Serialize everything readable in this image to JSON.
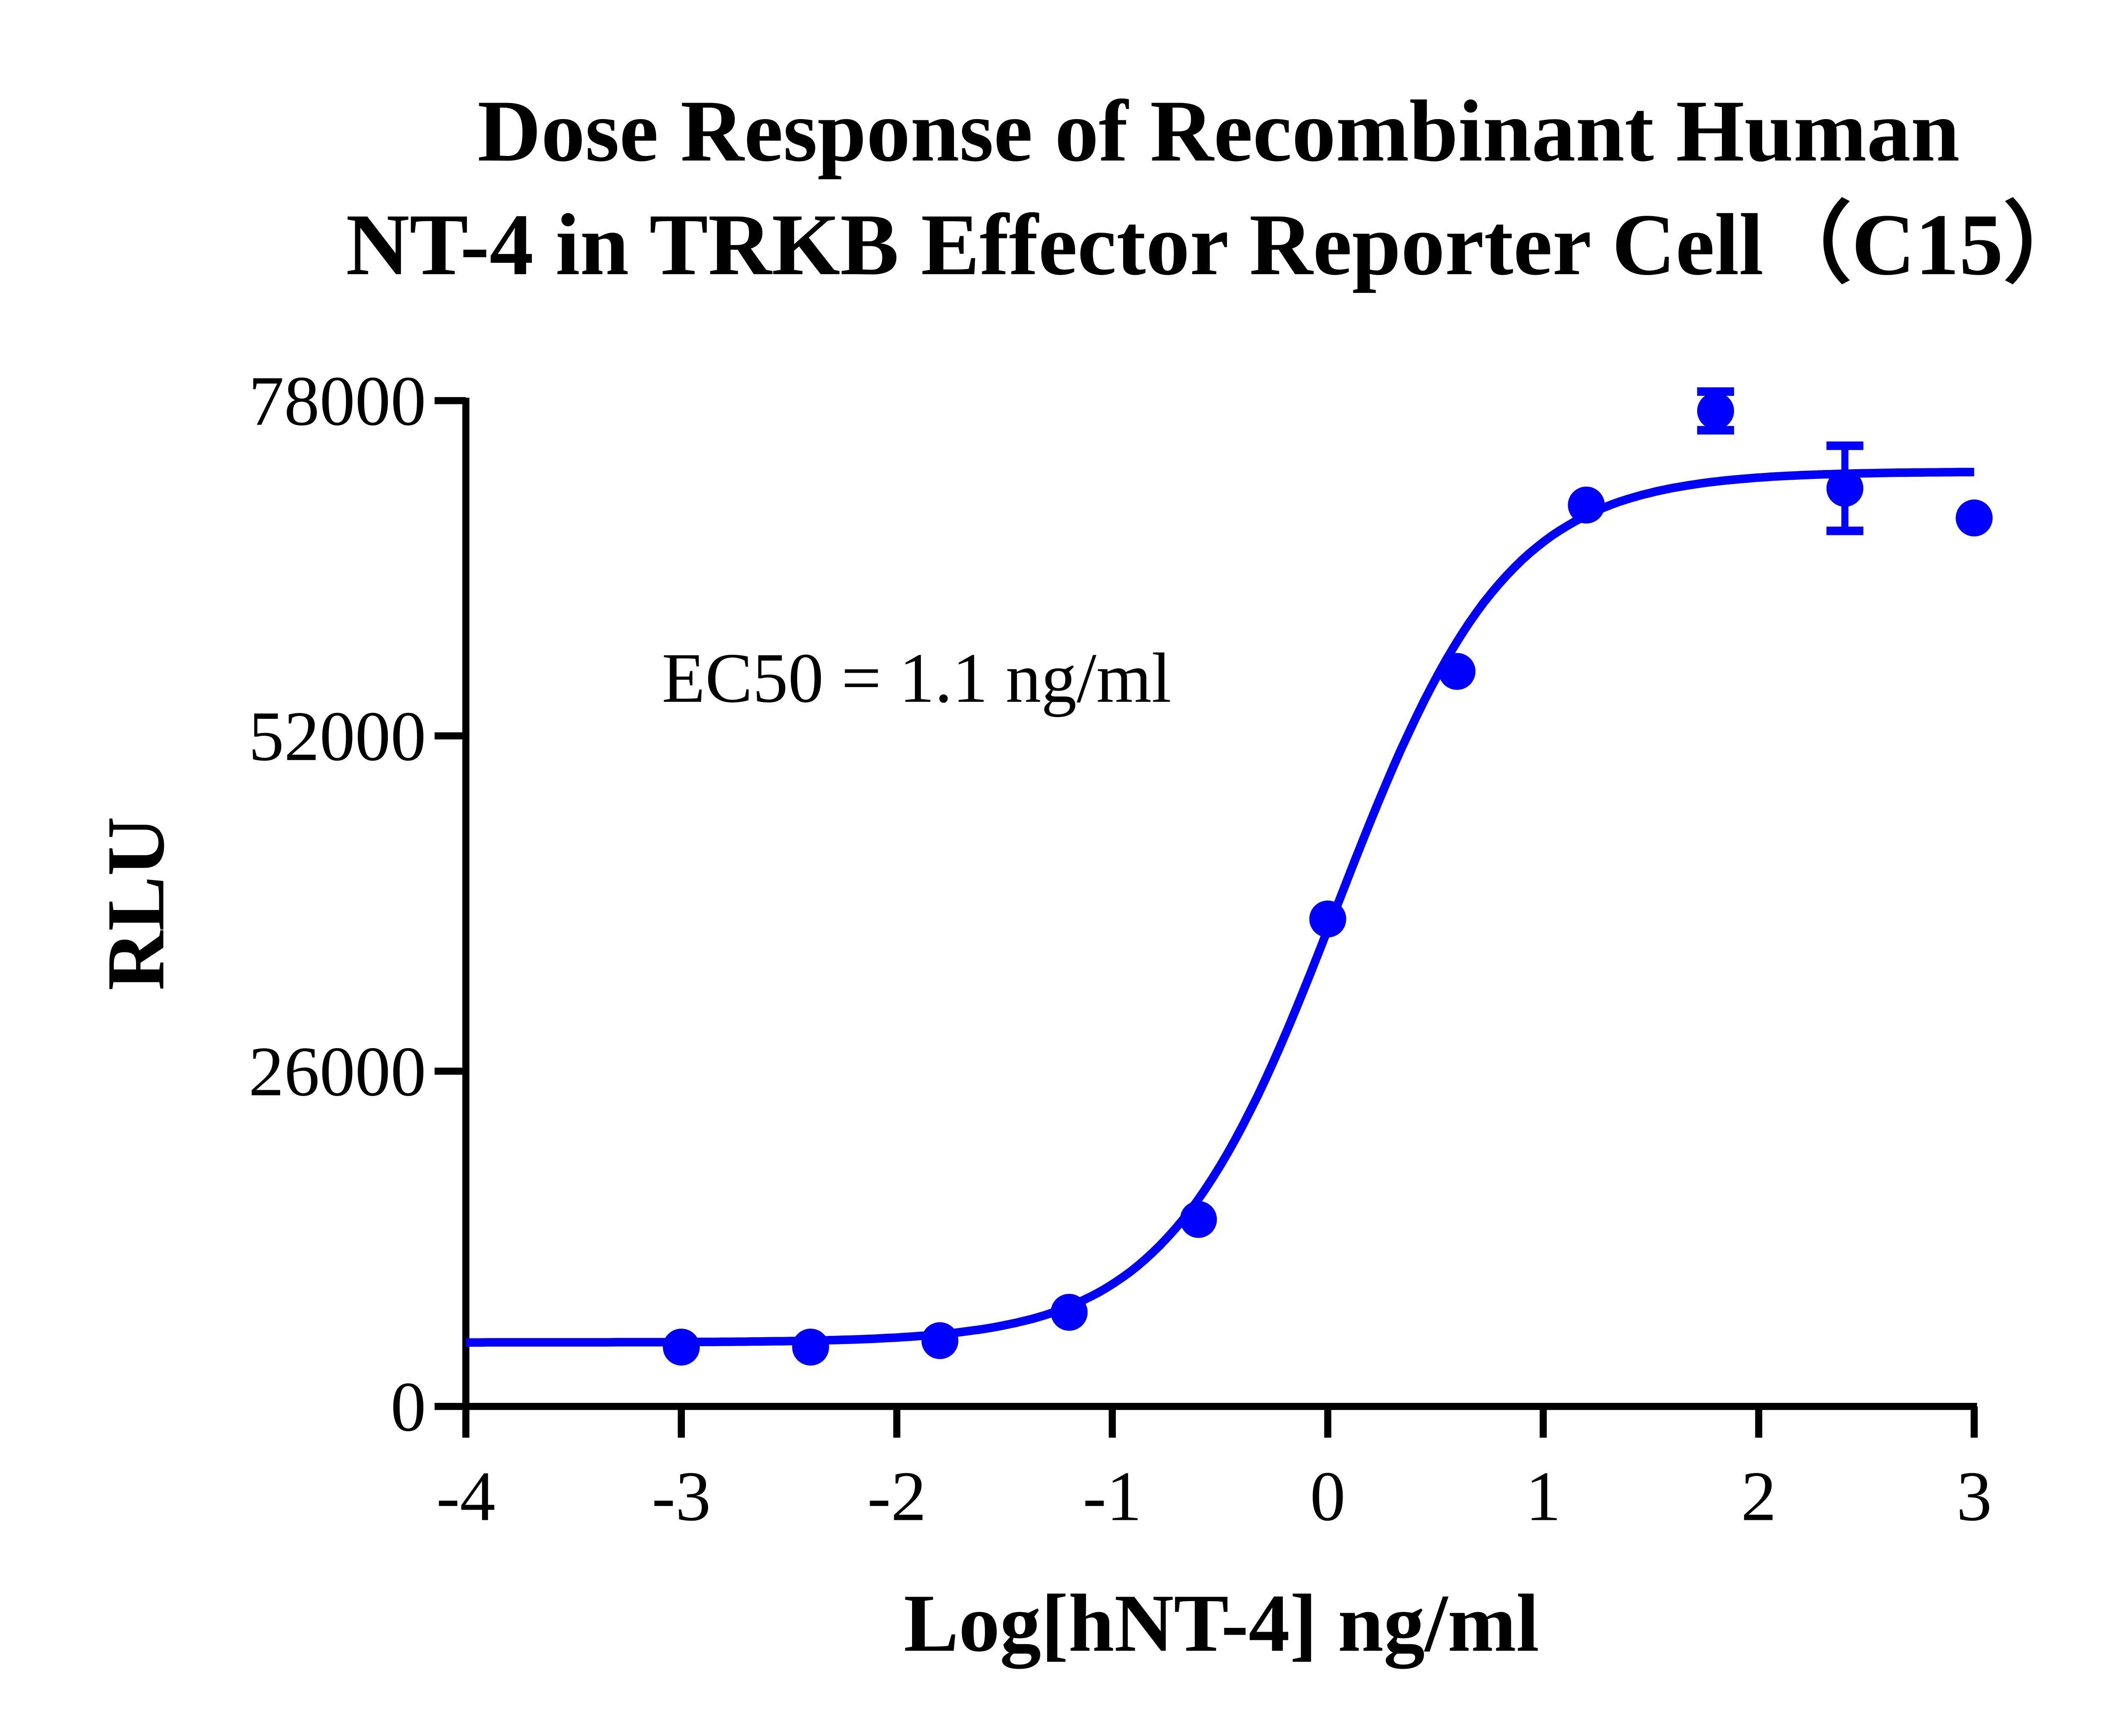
{
  "chart_data": {
    "type": "scatter",
    "title_lines": [
      "Dose Response of Recombinant Human",
      "NT-4 in TRKB Effector Reporter Cell（C15）"
    ],
    "xlabel": "Log[hNT-4] ng/ml",
    "ylabel": "RLU",
    "xlim": [
      -4,
      3
    ],
    "ylim": [
      0,
      78000
    ],
    "xticks": [
      -4,
      -3,
      -2,
      -1,
      0,
      1,
      2,
      3
    ],
    "yticks": [
      0,
      26000,
      52000,
      78000
    ],
    "annotation": "EC50 = 1.1 ng/ml",
    "grid": false,
    "color": "#0000ff",
    "points": {
      "x": [
        -3,
        -2.4,
        -1.8,
        -1.2,
        -0.6,
        0,
        0.6,
        1.2,
        1.8,
        2.4,
        3
      ],
      "y": [
        4600,
        4600,
        5100,
        7300,
        14500,
        37800,
        57000,
        69900,
        77200,
        71200,
        68900
      ],
      "error": [
        0,
        0,
        0,
        0,
        0,
        0,
        0,
        0,
        1500,
        3300,
        0
      ]
    },
    "fit": {
      "model": "4PL",
      "bottom": 4960,
      "top": 72500,
      "log_ec50": 0.041,
      "hill_slope": 1.1,
      "x_range": [
        -4,
        3
      ]
    }
  }
}
